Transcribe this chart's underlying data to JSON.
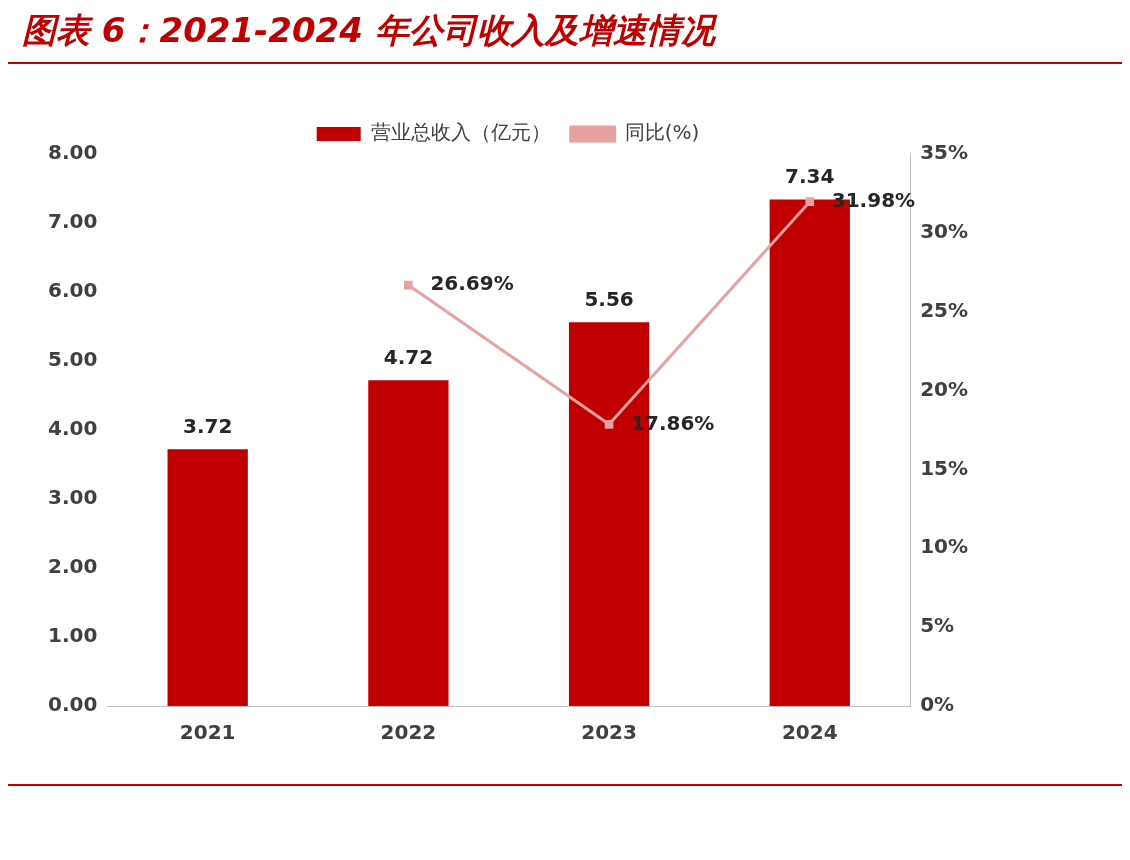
{
  "chart_data": {
    "type": "bar",
    "title": "图表 6：2021-2024 年公司收入及增速情况",
    "categories": [
      "2021",
      "2022",
      "2023",
      "2024"
    ],
    "series": [
      {
        "name": "营业总收入（亿元）",
        "color": "#c00000",
        "values": [
          3.72,
          4.72,
          5.56,
          7.34
        ],
        "value_labels": [
          "3.72",
          "4.72",
          "5.56",
          "7.34"
        ]
      },
      {
        "name": "同比(%)",
        "type": "line",
        "axis": "y2",
        "color": "#e8a0a0",
        "values": [
          null,
          26.69,
          17.86,
          31.98
        ],
        "value_labels": [
          null,
          "26.69%",
          "17.86%",
          "31.98%"
        ]
      }
    ],
    "ylim": [
      0,
      8
    ],
    "yticks": [
      {
        "value": 0,
        "label": "0.00"
      },
      {
        "value": 1,
        "label": "1.00"
      },
      {
        "value": 2,
        "label": "2.00"
      },
      {
        "value": 3,
        "label": "3.00"
      },
      {
        "value": 4,
        "label": "4.00"
      },
      {
        "value": 5,
        "label": "5.00"
      },
      {
        "value": 6,
        "label": "6.00"
      },
      {
        "value": 7,
        "label": "7.00"
      },
      {
        "value": 8,
        "label": "8.00"
      }
    ],
    "y2lim": [
      0,
      35
    ],
    "y2ticks": [
      {
        "value": 0,
        "label": "0%"
      },
      {
        "value": 5,
        "label": "5%"
      },
      {
        "value": 10,
        "label": "10%"
      },
      {
        "value": 15,
        "label": "15%"
      },
      {
        "value": 20,
        "label": "20%"
      },
      {
        "value": 25,
        "label": "25%"
      },
      {
        "value": 30,
        "label": "30%"
      },
      {
        "value": 35,
        "label": "35%"
      }
    ],
    "legend": "top",
    "grid": false,
    "marker": "square"
  }
}
